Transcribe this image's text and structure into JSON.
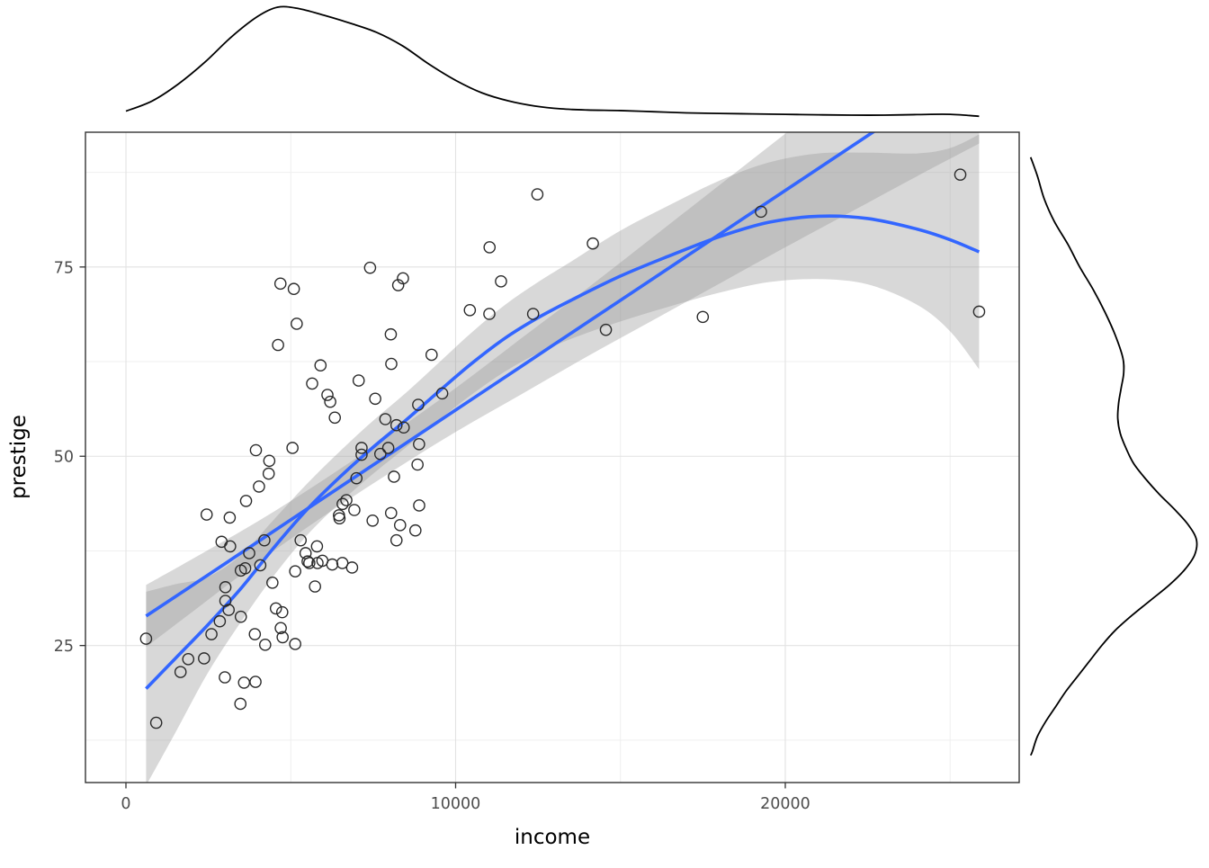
{
  "chart_data": {
    "type": "scatter",
    "title": "",
    "xlabel": "income",
    "ylabel": "prestige",
    "x_ticks": [
      0,
      10000,
      20000
    ],
    "x_minor_ticks": [
      5000,
      15000,
      25000
    ],
    "y_ticks": [
      25,
      50,
      75
    ],
    "y_minor_ticks": [
      12.5,
      37.5,
      62.5,
      87.5
    ],
    "xlim": [
      -1228,
      27095
    ],
    "ylim": [
      6.9,
      92.8
    ],
    "grid": true,
    "legend": "none",
    "points": [
      [
        611,
        25.9
      ],
      [
        918,
        14.8
      ],
      [
        1656,
        21.5
      ],
      [
        1890,
        23.2
      ],
      [
        2370,
        23.3
      ],
      [
        2448,
        42.3
      ],
      [
        2594,
        26.5
      ],
      [
        2847,
        28.2
      ],
      [
        2901,
        38.7
      ],
      [
        3000,
        20.8
      ],
      [
        3016,
        30.9
      ],
      [
        3016,
        32.7
      ],
      [
        3116,
        29.7
      ],
      [
        3148,
        41.9
      ],
      [
        3161,
        38.1
      ],
      [
        3472,
        17.3
      ],
      [
        3485,
        34.9
      ],
      [
        3485,
        28.8
      ],
      [
        3582,
        20.1
      ],
      [
        3617,
        35.2
      ],
      [
        3643,
        44.1
      ],
      [
        3739,
        37.2
      ],
      [
        3910,
        26.5
      ],
      [
        3930,
        20.2
      ],
      [
        3942,
        50.8
      ],
      [
        4036,
        46.0
      ],
      [
        4075,
        35.6
      ],
      [
        4199,
        38.9
      ],
      [
        4224,
        25.1
      ],
      [
        4330,
        47.7
      ],
      [
        4348,
        49.4
      ],
      [
        4443,
        33.3
      ],
      [
        4549,
        29.9
      ],
      [
        4614,
        64.7
      ],
      [
        4686,
        72.8
      ],
      [
        4696,
        27.3
      ],
      [
        4741,
        29.4
      ],
      [
        4753,
        26.1
      ],
      [
        5052,
        51.1
      ],
      [
        5092,
        72.1
      ],
      [
        5134,
        25.2
      ],
      [
        5134,
        34.8
      ],
      [
        5180,
        67.5
      ],
      [
        5299,
        38.9
      ],
      [
        5449,
        37.2
      ],
      [
        5511,
        36.1
      ],
      [
        5562,
        35.9
      ],
      [
        5648,
        59.6
      ],
      [
        5735,
        32.8
      ],
      [
        5795,
        38.1
      ],
      [
        5811,
        35.9
      ],
      [
        5902,
        62.0
      ],
      [
        5959,
        36.2
      ],
      [
        6112,
        58.1
      ],
      [
        6197,
        57.2
      ],
      [
        6259,
        35.7
      ],
      [
        6336,
        55.1
      ],
      [
        6462,
        42.2
      ],
      [
        6477,
        41.8
      ],
      [
        6565,
        35.9
      ],
      [
        6573,
        43.7
      ],
      [
        6686,
        44.2
      ],
      [
        6860,
        35.3
      ],
      [
        6928,
        42.9
      ],
      [
        6992,
        47.1
      ],
      [
        7059,
        60.0
      ],
      [
        7147,
        50.2
      ],
      [
        7147,
        51.1
      ],
      [
        7405,
        74.9
      ],
      [
        7482,
        41.5
      ],
      [
        7562,
        57.6
      ],
      [
        7716,
        50.3
      ],
      [
        7869,
        54.9
      ],
      [
        7956,
        51.1
      ],
      [
        8034,
        66.1
      ],
      [
        8043,
        42.5
      ],
      [
        8049,
        62.2
      ],
      [
        8131,
        47.3
      ],
      [
        8206,
        54.1
      ],
      [
        8206,
        38.9
      ],
      [
        8258,
        72.6
      ],
      [
        8316,
        40.9
      ],
      [
        8403,
        73.5
      ],
      [
        8425,
        53.8
      ],
      [
        8780,
        40.2
      ],
      [
        8845,
        48.9
      ],
      [
        8865,
        56.8
      ],
      [
        8891,
        51.6
      ],
      [
        8895,
        43.5
      ],
      [
        9271,
        63.4
      ],
      [
        9593,
        58.3
      ],
      [
        10432,
        69.3
      ],
      [
        11023,
        68.8
      ],
      [
        11030,
        77.6
      ],
      [
        11377,
        73.1
      ],
      [
        12351,
        68.8
      ],
      [
        12480,
        84.6
      ],
      [
        14163,
        78.1
      ],
      [
        14558,
        66.7
      ],
      [
        17498,
        68.4
      ],
      [
        19263,
        82.3
      ],
      [
        25308,
        87.2
      ],
      [
        25879,
        69.1
      ]
    ],
    "smooths": [
      {
        "name": "linear-fit",
        "color": "#3366FF",
        "points": [
          [
            611,
            28.9,
            24.8,
            33.0
          ],
          [
            2000,
            32.9,
            29.4,
            36.4
          ],
          [
            4000,
            38.7,
            36.0,
            41.4
          ],
          [
            6000,
            44.5,
            42.1,
            46.9
          ],
          [
            8000,
            50.3,
            47.8,
            52.8
          ],
          [
            10000,
            56.1,
            53.2,
            59.0
          ],
          [
            12000,
            61.9,
            58.2,
            65.6
          ],
          [
            14000,
            67.7,
            63.2,
            72.2
          ],
          [
            16000,
            73.5,
            68.0,
            79.0
          ],
          [
            18000,
            79.3,
            72.8,
            85.8
          ],
          [
            20000,
            85.1,
            77.6,
            92.6
          ],
          [
            22000,
            90.9,
            82.3,
            99.5
          ],
          [
            24000,
            96.7,
            87.0,
            106.4
          ],
          [
            25879,
            102.1,
            91.3,
            112.9
          ]
        ]
      },
      {
        "name": "loess-fit",
        "color": "#3366FF",
        "points": [
          [
            611,
            19.3,
            6.5,
            32.1
          ],
          [
            1500,
            23.3,
            13.5,
            33.1
          ],
          [
            2500,
            27.8,
            21.5,
            34.1
          ],
          [
            3500,
            32.6,
            28.2,
            37.0
          ],
          [
            4500,
            38.0,
            34.3,
            41.7
          ],
          [
            5500,
            43.0,
            39.6,
            46.4
          ],
          [
            6500,
            47.3,
            43.9,
            50.7
          ],
          [
            7500,
            51.2,
            47.7,
            54.7
          ],
          [
            8500,
            54.8,
            51.2,
            58.4
          ],
          [
            9500,
            58.6,
            54.8,
            62.4
          ],
          [
            10500,
            62.3,
            58.2,
            66.4
          ],
          [
            11500,
            65.6,
            61.2,
            70.0
          ],
          [
            12500,
            68.3,
            63.6,
            73.0
          ],
          [
            13500,
            70.6,
            65.5,
            75.7
          ],
          [
            15000,
            73.8,
            67.8,
            79.8
          ],
          [
            16500,
            76.5,
            69.8,
            83.2
          ],
          [
            18000,
            79.0,
            71.6,
            86.4
          ],
          [
            19500,
            80.9,
            73.0,
            88.8
          ],
          [
            21000,
            81.7,
            73.4,
            90.0
          ],
          [
            22500,
            81.4,
            72.7,
            90.1
          ],
          [
            24000,
            80.0,
            70.0,
            90.0
          ],
          [
            25000,
            78.6,
            66.5,
            90.7
          ],
          [
            25879,
            77.0,
            61.5,
            92.5
          ]
        ]
      }
    ],
    "marginal_densities": {
      "top": {
        "variable": "income",
        "curve": [
          [
            0,
            0.09
          ],
          [
            800,
            0.18
          ],
          [
            1600,
            0.33
          ],
          [
            2400,
            0.52
          ],
          [
            3200,
            0.74
          ],
          [
            4000,
            0.92
          ],
          [
            4600,
            1.0
          ],
          [
            5200,
            0.99
          ],
          [
            6000,
            0.93
          ],
          [
            6800,
            0.86
          ],
          [
            7600,
            0.78
          ],
          [
            8400,
            0.66
          ],
          [
            9200,
            0.5
          ],
          [
            10000,
            0.36
          ],
          [
            10800,
            0.25
          ],
          [
            11600,
            0.18
          ],
          [
            12400,
            0.135
          ],
          [
            13200,
            0.11
          ],
          [
            14000,
            0.1
          ],
          [
            15000,
            0.095
          ],
          [
            16000,
            0.085
          ],
          [
            17000,
            0.075
          ],
          [
            18000,
            0.07
          ],
          [
            19000,
            0.066
          ],
          [
            20000,
            0.062
          ],
          [
            21000,
            0.058
          ],
          [
            22000,
            0.055
          ],
          [
            23000,
            0.055
          ],
          [
            24000,
            0.06
          ],
          [
            25000,
            0.062
          ],
          [
            25879,
            0.045
          ]
        ]
      },
      "right": {
        "variable": "prestige",
        "curve": [
          [
            89.5,
            0.02
          ],
          [
            87,
            0.06
          ],
          [
            84,
            0.1
          ],
          [
            81,
            0.16
          ],
          [
            78,
            0.24
          ],
          [
            75,
            0.31
          ],
          [
            72,
            0.39
          ],
          [
            69,
            0.46
          ],
          [
            66,
            0.52
          ],
          [
            63,
            0.565
          ],
          [
            61,
            0.57
          ],
          [
            59,
            0.555
          ],
          [
            57,
            0.54
          ],
          [
            55,
            0.535
          ],
          [
            53,
            0.55
          ],
          [
            51,
            0.585
          ],
          [
            49,
            0.63
          ],
          [
            47,
            0.7
          ],
          [
            45,
            0.78
          ],
          [
            43,
            0.87
          ],
          [
            41,
            0.95
          ],
          [
            39,
            1.0
          ],
          [
            37,
            0.99
          ],
          [
            35,
            0.93
          ],
          [
            33,
            0.84
          ],
          [
            31,
            0.73
          ],
          [
            29,
            0.62
          ],
          [
            27,
            0.52
          ],
          [
            25,
            0.44
          ],
          [
            23,
            0.37
          ],
          [
            21,
            0.3
          ],
          [
            19,
            0.23
          ],
          [
            17,
            0.17
          ],
          [
            15,
            0.11
          ],
          [
            13,
            0.06
          ],
          [
            11,
            0.03
          ],
          [
            10.5,
            0.02
          ]
        ]
      }
    },
    "style": {
      "point_color": "#2a2a2a",
      "line_color": "#3366FF",
      "ribbon_color": "#999999",
      "ribbon_opacity": 0.38,
      "grid_major_color": "#e2e2e2",
      "grid_minor_color": "#efefef",
      "panel_border_color": "#333333",
      "axis_tick_color": "#333333",
      "axis_text_color": "#4d4d4d",
      "axis_title_color": "#000000",
      "density_color": "#000000"
    }
  }
}
